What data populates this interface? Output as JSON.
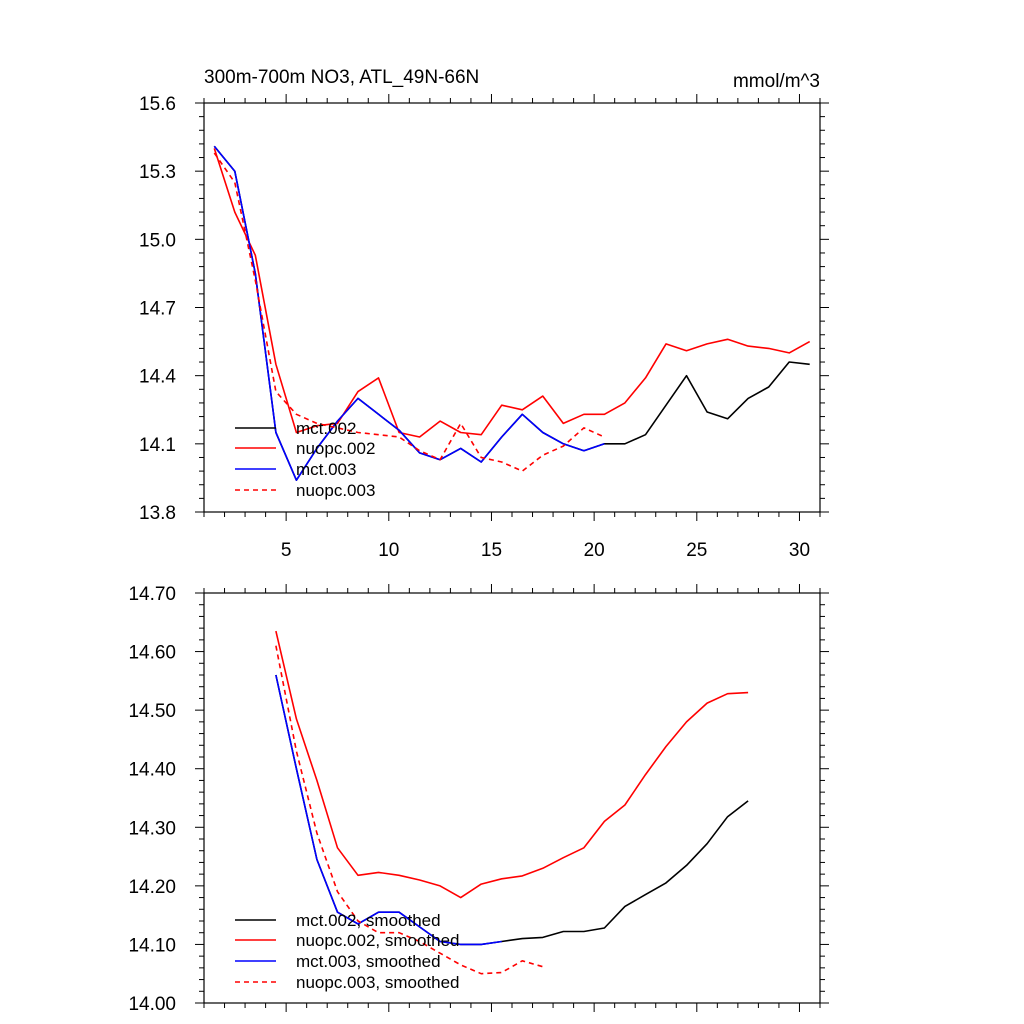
{
  "chart_data": [
    {
      "type": "line",
      "title_left": "300m-700m NO3, ATL_49N-66N",
      "title_right": "mmol/m^3",
      "xlim": [
        1,
        31
      ],
      "ylim": [
        13.8,
        15.6
      ],
      "xticks": [
        5,
        10,
        15,
        20,
        25,
        30
      ],
      "xtick_labels": [
        "5",
        "10",
        "15",
        "20",
        "25",
        "30"
      ],
      "yticks": [
        13.8,
        14.1,
        14.4,
        14.7,
        15.0,
        15.3,
        15.6
      ],
      "ytick_labels": [
        "13.8",
        "14.1",
        "14.4",
        "14.7",
        "15.0",
        "15.3",
        "15.6"
      ],
      "legend_position": "lower-left",
      "series": [
        {
          "name": "mct.002",
          "color": "#000000",
          "dash": "solid",
          "x": [
            1.5,
            2.5,
            3.5,
            4.5,
            5.5,
            6.5,
            7.5,
            8.5,
            9.5,
            10.5,
            11.5,
            12.5,
            13.5,
            14.5,
            15.5,
            16.5,
            17.5,
            18.5,
            19.5,
            20.5,
            21.5,
            22.5,
            23.5,
            24.5,
            25.5,
            26.5,
            27.5,
            28.5,
            29.5,
            30.5
          ],
          "y": [
            15.41,
            15.3,
            14.85,
            14.15,
            13.94,
            14.08,
            14.2,
            14.3,
            14.23,
            14.16,
            14.06,
            14.03,
            14.08,
            14.02,
            14.13,
            14.23,
            14.15,
            14.1,
            14.07,
            14.1,
            14.1,
            14.14,
            14.27,
            14.4,
            14.24,
            14.21,
            14.3,
            14.35,
            14.46,
            14.45
          ]
        },
        {
          "name": "nuopc.002",
          "color": "#ff0000",
          "dash": "solid",
          "x": [
            1.5,
            2.5,
            3.5,
            4.5,
            5.5,
            6.5,
            7.5,
            8.5,
            9.5,
            10.5,
            11.5,
            12.5,
            13.5,
            14.5,
            15.5,
            16.5,
            17.5,
            18.5,
            19.5,
            20.5,
            21.5,
            22.5,
            23.5,
            24.5,
            25.5,
            26.5,
            27.5,
            28.5,
            29.5,
            30.5
          ],
          "y": [
            15.4,
            15.12,
            14.93,
            14.45,
            14.15,
            14.18,
            14.19,
            14.33,
            14.39,
            14.15,
            14.13,
            14.2,
            14.15,
            14.14,
            14.27,
            14.25,
            14.31,
            14.19,
            14.23,
            14.23,
            14.28,
            14.39,
            14.54,
            14.51,
            14.54,
            14.56,
            14.53,
            14.52,
            14.5,
            14.55
          ]
        },
        {
          "name": "mct.003",
          "color": "#0000ff",
          "dash": "solid",
          "x": [
            1.5,
            2.5,
            3.5,
            4.5,
            5.5,
            6.5,
            7.5,
            8.5,
            9.5,
            10.5,
            11.5,
            12.5,
            13.5,
            14.5,
            15.5,
            16.5,
            17.5,
            18.5,
            19.5,
            20.5
          ],
          "y": [
            15.41,
            15.3,
            14.85,
            14.15,
            13.94,
            14.08,
            14.2,
            14.3,
            14.23,
            14.16,
            14.06,
            14.03,
            14.08,
            14.02,
            14.13,
            14.23,
            14.15,
            14.1,
            14.07,
            14.1
          ]
        },
        {
          "name": "nuopc.003",
          "color": "#ff0000",
          "dash": "dashed",
          "x": [
            1.5,
            2.5,
            3.5,
            4.5,
            5.5,
            6.5,
            7.5,
            8.5,
            9.5,
            10.5,
            11.5,
            12.5,
            13.5,
            14.5,
            15.5,
            16.5,
            17.5,
            18.5,
            19.5,
            20.5
          ],
          "y": [
            15.38,
            15.25,
            14.82,
            14.33,
            14.23,
            14.19,
            14.17,
            14.15,
            14.14,
            14.13,
            14.07,
            14.03,
            14.19,
            14.04,
            14.02,
            13.98,
            14.05,
            14.09,
            14.17,
            14.13
          ]
        }
      ]
    },
    {
      "type": "line",
      "xlim": [
        1,
        31
      ],
      "ylim": [
        14.0,
        14.7
      ],
      "xticks": [
        5,
        10,
        15,
        20,
        25,
        30
      ],
      "yticks": [
        14.0,
        14.1,
        14.2,
        14.3,
        14.4,
        14.5,
        14.6,
        14.7
      ],
      "ytick_labels": [
        "14.00",
        "14.10",
        "14.20",
        "14.30",
        "14.40",
        "14.50",
        "14.60",
        "14.70"
      ],
      "legend_position": "lower-left",
      "series": [
        {
          "name": "mct.002, smoothed",
          "color": "#000000",
          "dash": "solid",
          "x": [
            4.5,
            5.5,
            6.5,
            7.5,
            8.5,
            9.5,
            10.5,
            11.5,
            12.5,
            13.5,
            14.5,
            15.5,
            16.5,
            17.5,
            18.5,
            19.5,
            20.5,
            21.5,
            22.5,
            23.5,
            24.5,
            25.5,
            26.5,
            27.5
          ],
          "y": [
            14.56,
            14.4,
            14.245,
            14.155,
            14.135,
            14.155,
            14.155,
            14.13,
            14.105,
            14.1,
            14.1,
            14.105,
            14.11,
            14.112,
            14.122,
            14.122,
            14.128,
            14.165,
            14.185,
            14.205,
            14.235,
            14.272,
            14.318,
            14.345
          ]
        },
        {
          "name": "nuopc.002, smoothed",
          "color": "#ff0000",
          "dash": "solid",
          "x": [
            4.5,
            5.5,
            6.5,
            7.5,
            8.5,
            9.5,
            10.5,
            11.5,
            12.5,
            13.5,
            14.5,
            15.5,
            16.5,
            17.5,
            18.5,
            19.5,
            20.5,
            21.5,
            22.5,
            23.5,
            24.5,
            25.5,
            26.5,
            27.5
          ],
          "y": [
            14.635,
            14.485,
            14.38,
            14.265,
            14.218,
            14.223,
            14.218,
            14.21,
            14.2,
            14.18,
            14.203,
            14.212,
            14.217,
            14.23,
            14.248,
            14.265,
            14.31,
            14.338,
            14.39,
            14.438,
            14.48,
            14.512,
            14.528,
            14.53
          ]
        },
        {
          "name": "mct.003, smoothed",
          "color": "#0000ff",
          "dash": "solid",
          "x": [
            4.5,
            5.5,
            6.5,
            7.5,
            8.5,
            9.5,
            10.5,
            11.5,
            12.5,
            13.5,
            14.5,
            15.5
          ],
          "y": [
            14.56,
            14.4,
            14.245,
            14.155,
            14.135,
            14.155,
            14.155,
            14.13,
            14.105,
            14.1,
            14.1,
            14.105
          ]
        },
        {
          "name": "nuopc.003, smoothed",
          "color": "#ff0000",
          "dash": "dashed",
          "x": [
            4.5,
            5.5,
            6.5,
            7.5,
            8.5,
            9.5,
            10.5,
            11.5,
            12.5,
            13.5,
            14.5,
            15.5,
            16.5,
            17.5
          ],
          "y": [
            14.61,
            14.43,
            14.29,
            14.19,
            14.14,
            14.12,
            14.12,
            14.105,
            14.085,
            14.065,
            14.05,
            14.052,
            14.072,
            14.062
          ]
        }
      ]
    }
  ]
}
